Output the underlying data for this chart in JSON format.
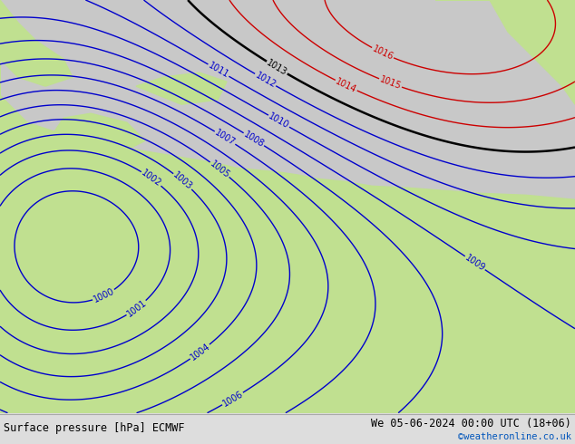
{
  "title_left": "Surface pressure [hPa] ECMWF",
  "title_right": "We 05-06-2024 00:00 UTC (18+06)",
  "copyright": "©weatheronline.co.uk",
  "gray_color": "#c8c8c8",
  "green_color": "#c0e090",
  "blue_contour_color": "#0000cc",
  "red_contour_color": "#cc0000",
  "black_contour_color": "#000000",
  "figsize": [
    6.34,
    4.9
  ],
  "dpi": 100
}
